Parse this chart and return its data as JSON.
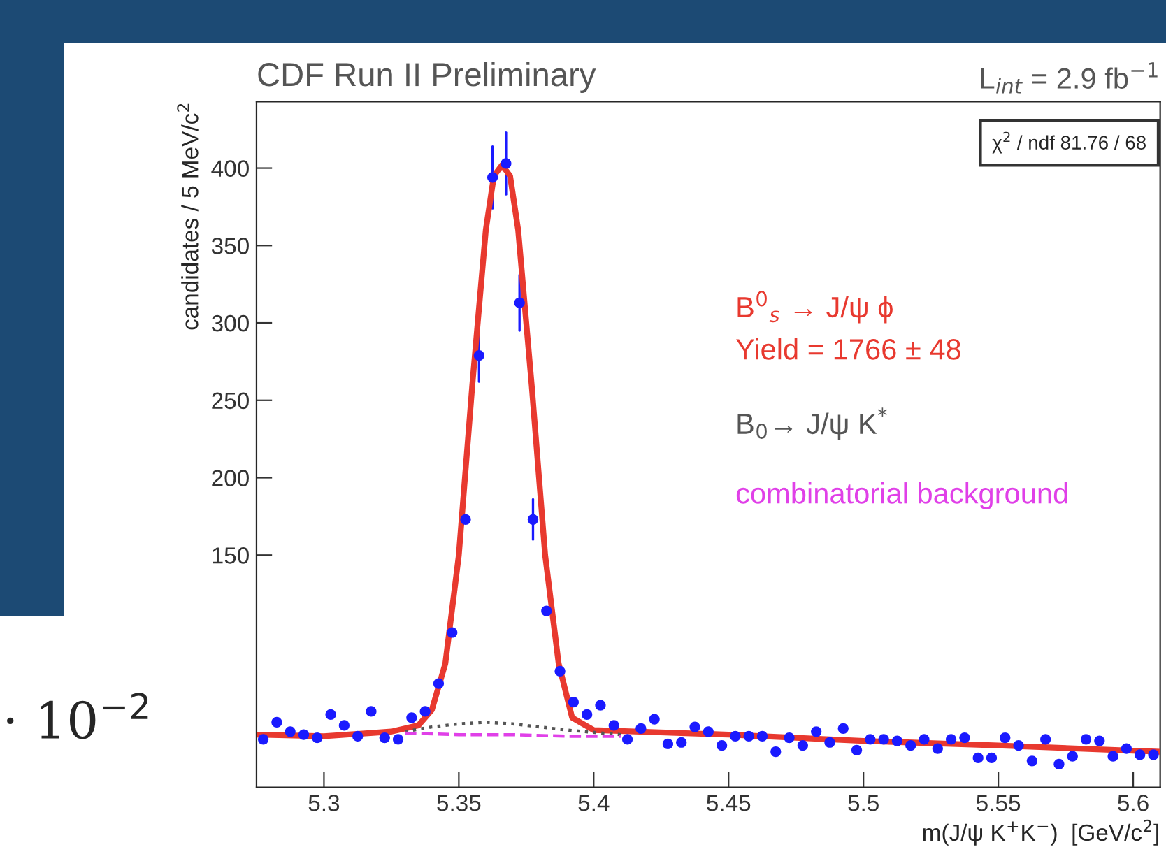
{
  "chart_data": {
    "type": "scatter",
    "title": "CDF Run II Preliminary",
    "xlabel": "m(J/ψ K$^{+}$K$^{−}$)  [GeV/c$^{2}$]",
    "ylabel": "candidates / 5 MeV/c$^{2}$",
    "annotations": [
      "L$_{int}$ = 2.9 fb$^{−1}$",
      "χ$^{2}$ / ndf 81.76 / 68",
      "· 10$^{−2}$",
      "Yield = 1766 ± 48"
    ],
    "xlim": [
      5.275,
      5.61
    ],
    "ylim": [
      0,
      443
    ],
    "xticks": [
      5.3,
      5.35,
      5.4,
      5.45,
      5.5,
      5.55,
      5.6
    ],
    "yticks": [
      150,
      200,
      250,
      300,
      350,
      400
    ],
    "grid": false,
    "legend": "right",
    "series": [
      {
        "marker": "circle",
        "color": "#1a1aff",
        "x": [
          5.2775,
          5.2825,
          5.2875,
          5.2925,
          5.2975,
          5.3025,
          5.3075,
          5.3125,
          5.3175,
          5.3225,
          5.3275,
          5.3325,
          5.3375,
          5.3425,
          5.3475,
          5.3525,
          5.3575,
          5.3625,
          5.3675,
          5.3725,
          5.3775,
          5.3825,
          5.3875,
          5.3925,
          5.3975,
          5.4025,
          5.4075,
          5.4125,
          5.4175,
          5.4225,
          5.4275,
          5.4325,
          5.4375,
          5.4425,
          5.4475,
          5.4525,
          5.4575,
          5.4625,
          5.4675,
          5.4725,
          5.4775,
          5.4825,
          5.4875,
          5.4925,
          5.4975,
          5.5025,
          5.5075,
          5.5125,
          5.5175,
          5.5225,
          5.5275,
          5.5325,
          5.5375,
          5.5425,
          5.5475,
          5.5525,
          5.5575,
          5.5625,
          5.5675,
          5.5725,
          5.5775,
          5.5825,
          5.5875,
          5.5925,
          5.5975,
          5.6025,
          5.6075
        ],
        "values": [
          31,
          42,
          36,
          34,
          32,
          47,
          40,
          33,
          49,
          32,
          31,
          45,
          49,
          67,
          100,
          173,
          279,
          394,
          403,
          313,
          173,
          114,
          75,
          55,
          47,
          53,
          40,
          31,
          38,
          44,
          28,
          29,
          39,
          36,
          27,
          33,
          33,
          33,
          23,
          32,
          27,
          36,
          29,
          38,
          24,
          31,
          31,
          30,
          27,
          31,
          25,
          31,
          32,
          19,
          19,
          32,
          27,
          17,
          31,
          15,
          20,
          31,
          30,
          20,
          25,
          21,
          21
        ],
        "errors": [
          null,
          null,
          null,
          null,
          null,
          null,
          null,
          null,
          null,
          null,
          null,
          null,
          null,
          null,
          null,
          null,
          17,
          20,
          20,
          18,
          13,
          null,
          null,
          null,
          null,
          null,
          null,
          null,
          null,
          null,
          null,
          null,
          null,
          null,
          null,
          null,
          null,
          null,
          null,
          null,
          null,
          null,
          null,
          null,
          null,
          null,
          null,
          null,
          null,
          null,
          null,
          null,
          null,
          null,
          null,
          null,
          null,
          null,
          null,
          null,
          null,
          null,
          null,
          null,
          null,
          null,
          null
        ]
      },
      {
        "type": "line",
        "name": "B$^{0}$$_{s}$ → J/ψ ϕ",
        "color": "#e8392f",
        "line_style": "solid",
        "x": [
          5.275,
          5.3,
          5.325,
          5.335,
          5.34,
          5.345,
          5.35,
          5.355,
          5.36,
          5.363,
          5.366,
          5.369,
          5.372,
          5.377,
          5.382,
          5.387,
          5.392,
          5.4,
          5.45,
          5.5,
          5.55,
          5.61
        ],
        "values": [
          34,
          33,
          36,
          40,
          50,
          80,
          150,
          260,
          360,
          395,
          402,
          395,
          360,
          260,
          150,
          80,
          45,
          37,
          34,
          30,
          27,
          23
        ]
      },
      {
        "type": "line",
        "name": "B$_{0}$→ J/ψ K$^{*}$",
        "color": "#555555",
        "line_style": "dotted",
        "x": [
          5.33,
          5.34,
          5.35,
          5.36,
          5.37,
          5.38,
          5.39,
          5.41
        ],
        "values": [
          36,
          39,
          41,
          42,
          41,
          39,
          37,
          34
        ]
      },
      {
        "type": "line",
        "name": "combinatorial background",
        "color": "#e040e8",
        "line_style": "dashed",
        "x": [
          5.33,
          5.35,
          5.37,
          5.39,
          5.41
        ],
        "values": [
          35,
          34,
          34,
          33,
          33
        ]
      }
    ]
  }
}
